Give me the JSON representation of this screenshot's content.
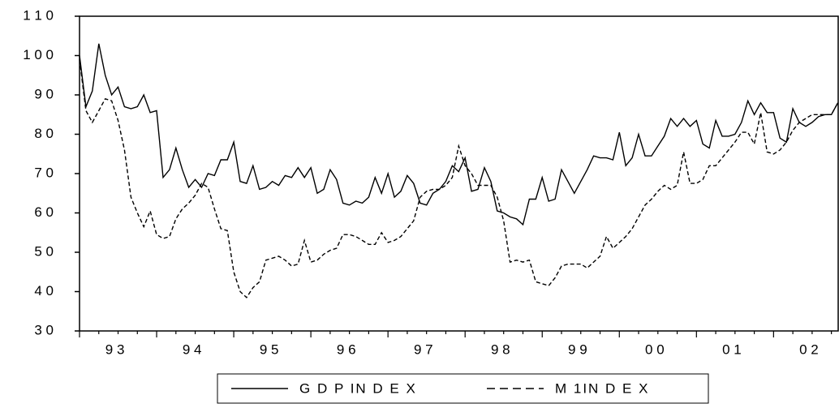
{
  "chart_data": {
    "type": "line",
    "categories": [
      null,
      null,
      null,
      null,
      null,
      "9 3",
      null,
      null,
      null,
      null,
      null,
      null,
      null,
      null,
      null,
      null,
      null,
      "9 4",
      null,
      null,
      null,
      null,
      null,
      null,
      null,
      null,
      null,
      null,
      null,
      "9 5",
      null,
      null,
      null,
      null,
      null,
      null,
      null,
      null,
      null,
      null,
      null,
      "9 6",
      null,
      null,
      null,
      null,
      null,
      null,
      null,
      null,
      null,
      null,
      null,
      "9 7",
      null,
      null,
      null,
      null,
      null,
      null,
      null,
      null,
      null,
      null,
      null,
      "9 8",
      null,
      null,
      null,
      null,
      null,
      null,
      null,
      null,
      null,
      null,
      null,
      "9 9",
      null,
      null,
      null,
      null,
      null,
      null,
      null,
      null,
      null,
      null,
      null,
      "0 0",
      null,
      null,
      null,
      null,
      null,
      null,
      null,
      null,
      null,
      null,
      null,
      "0 1",
      null,
      null,
      null,
      null,
      null,
      null,
      null,
      null,
      null,
      null,
      null,
      "0 2",
      null,
      null,
      null,
      null,
      null
    ],
    "series": [
      {
        "name": "G D P IN D E X",
        "color": "#000000",
        "dash": false,
        "values": [
          100,
          87,
          91,
          103,
          95,
          90,
          92,
          87,
          86.5,
          87,
          90,
          85.5,
          86,
          69,
          71,
          76.5,
          71,
          66.5,
          68.5,
          66.5,
          70,
          69.5,
          73.5,
          73.5,
          78,
          68,
          67.5,
          72,
          66,
          66.5,
          68,
          67,
          69.5,
          69,
          71.5,
          69,
          71.5,
          65,
          66,
          71,
          68.5,
          62.5,
          62,
          63,
          62.5,
          64,
          69,
          65,
          70,
          64,
          65.5,
          69.5,
          67.5,
          62.5,
          62,
          65,
          66,
          68,
          72,
          70.5,
          74,
          65.5,
          66,
          71.5,
          68,
          60.5,
          60,
          59,
          58.5,
          57,
          63.5,
          63.5,
          69,
          63,
          63.5,
          71,
          68,
          65,
          68,
          71,
          74.5,
          74,
          74,
          73.5,
          80.5,
          72,
          74,
          80,
          74.5,
          74.5,
          77,
          79.5,
          84,
          82,
          84,
          82,
          83.5,
          77.5,
          76.5,
          83.5,
          79.5,
          79.5,
          80,
          83,
          88.5,
          85,
          88,
          85.5,
          85.5,
          79,
          78,
          86.5,
          83,
          82,
          83,
          84.5,
          85,
          85,
          88
        ]
      },
      {
        "name": "M 1IN D E X",
        "color": "#000000",
        "dash": true,
        "values": [
          99,
          86,
          83,
          86,
          89,
          88.5,
          83.5,
          76,
          64,
          60,
          56.5,
          60.5,
          54.5,
          53.5,
          54,
          58.5,
          61,
          62.5,
          64.5,
          67.5,
          66.5,
          61,
          56,
          55.5,
          45,
          40,
          38.5,
          41,
          42.5,
          48,
          48.5,
          49,
          48,
          46.5,
          47,
          53,
          47.5,
          48,
          49.5,
          50.5,
          51,
          54.5,
          54.5,
          54,
          53,
          52,
          52,
          55,
          52.5,
          53,
          54,
          56,
          58,
          64,
          65.5,
          66,
          66,
          67,
          69,
          77,
          72,
          70,
          67,
          67,
          67,
          64,
          58,
          47.5,
          48,
          47.5,
          48,
          42.5,
          42,
          41.5,
          43.5,
          46.5,
          47,
          47,
          47,
          46,
          47.5,
          49,
          54,
          51,
          52.5,
          54,
          56,
          59,
          62,
          63.5,
          65.5,
          67,
          66,
          67,
          75.5,
          67.5,
          67.5,
          68.5,
          72,
          72,
          74,
          76,
          78,
          80.5,
          80.5,
          77.5,
          85.5,
          75.5,
          75,
          76,
          78,
          81,
          83,
          84,
          85,
          85,
          85,
          85,
          88
        ]
      }
    ],
    "ylim": [
      30,
      110
    ],
    "yticks": [
      {
        "value": 30,
        "label": "3 0"
      },
      {
        "value": 40,
        "label": "4 0"
      },
      {
        "value": 50,
        "label": "5 0"
      },
      {
        "value": 60,
        "label": "6 0"
      },
      {
        "value": 70,
        "label": "7 0"
      },
      {
        "value": 80,
        "label": "8 0"
      },
      {
        "value": 90,
        "label": "9 0"
      },
      {
        "value": 100,
        "label": "1 0 0"
      },
      {
        "value": 110,
        "label": "1 1 0"
      }
    ]
  }
}
